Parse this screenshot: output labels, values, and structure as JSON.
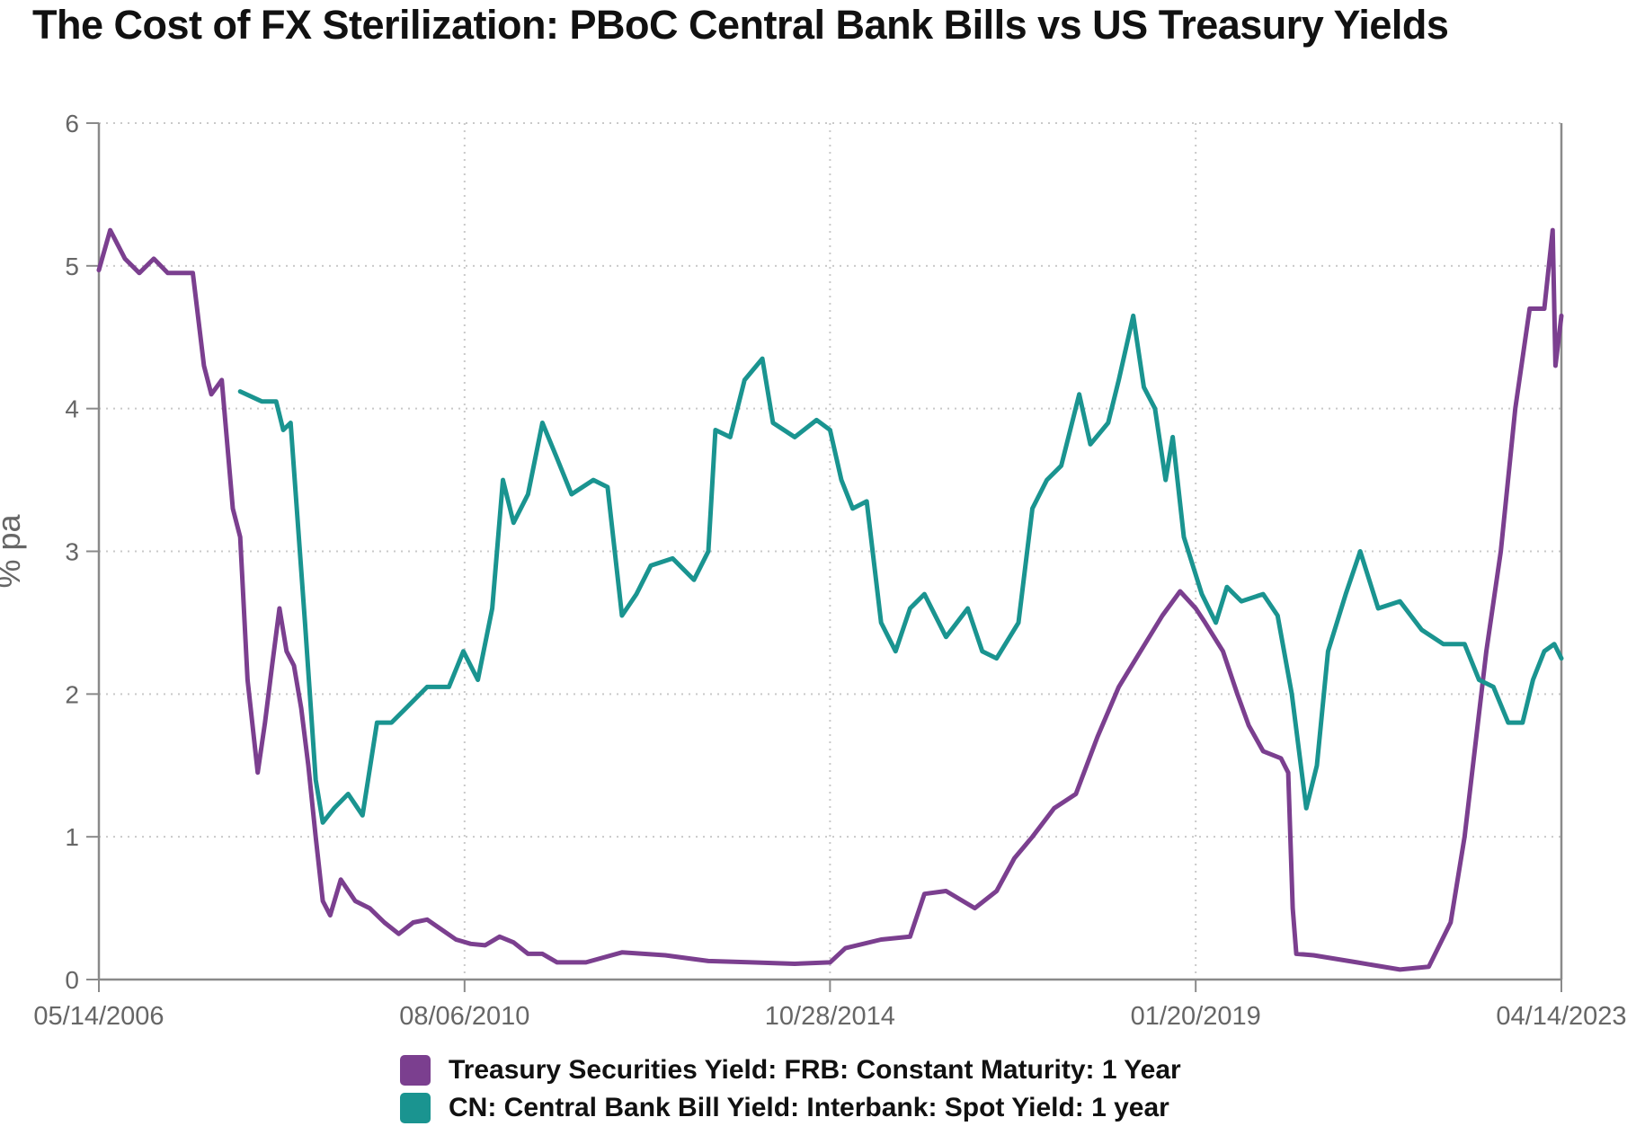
{
  "title": "The Cost of FX Sterilization: PBoC Central Bank Bills vs US Treasury Yields",
  "chart_data": {
    "type": "line",
    "title": "The Cost of FX Sterilization: PBoC Central Bank Bills vs US Treasury Yields",
    "ylabel": "% pa",
    "xlabel": "",
    "ylim": [
      0,
      6
    ],
    "y_ticks": [
      "0",
      "1",
      "2",
      "3",
      "4",
      "5",
      "6"
    ],
    "x_range": [
      "05/14/2006",
      "04/14/2023"
    ],
    "x_ticks": [
      "05/14/2006",
      "08/06/2010",
      "10/28/2014",
      "01/20/2019",
      "04/14/2023"
    ],
    "grid": "dotted",
    "legend_position": "bottom",
    "series": [
      {
        "name": "Treasury Securities Yield: FRB: Constant Maturity: 1 Year",
        "color": "#7b3f8f",
        "points": [
          [
            "2006-05-14",
            4.97
          ],
          [
            "2006-07-01",
            5.25
          ],
          [
            "2006-09-01",
            5.05
          ],
          [
            "2006-11-01",
            4.95
          ],
          [
            "2007-01-01",
            5.05
          ],
          [
            "2007-03-01",
            4.95
          ],
          [
            "2007-05-01",
            4.95
          ],
          [
            "2007-06-15",
            4.95
          ],
          [
            "2007-08-01",
            4.3
          ],
          [
            "2007-09-01",
            4.1
          ],
          [
            "2007-10-15",
            4.2
          ],
          [
            "2007-12-01",
            3.3
          ],
          [
            "2008-01-01",
            3.1
          ],
          [
            "2008-02-01",
            2.1
          ],
          [
            "2008-03-15",
            1.45
          ],
          [
            "2008-04-15",
            1.8
          ],
          [
            "2008-05-15",
            2.2
          ],
          [
            "2008-06-15",
            2.6
          ],
          [
            "2008-07-15",
            2.3
          ],
          [
            "2008-08-15",
            2.2
          ],
          [
            "2008-09-15",
            1.9
          ],
          [
            "2008-10-15",
            1.5
          ],
          [
            "2008-11-15",
            1.0
          ],
          [
            "2008-12-15",
            0.55
          ],
          [
            "2009-01-15",
            0.45
          ],
          [
            "2009-03-01",
            0.7
          ],
          [
            "2009-05-01",
            0.55
          ],
          [
            "2009-07-01",
            0.5
          ],
          [
            "2009-09-01",
            0.4
          ],
          [
            "2009-11-01",
            0.32
          ],
          [
            "2010-01-01",
            0.4
          ],
          [
            "2010-03-01",
            0.42
          ],
          [
            "2010-05-01",
            0.35
          ],
          [
            "2010-07-01",
            0.28
          ],
          [
            "2010-09-01",
            0.25
          ],
          [
            "2010-11-01",
            0.24
          ],
          [
            "2011-01-01",
            0.3
          ],
          [
            "2011-03-01",
            0.26
          ],
          [
            "2011-05-01",
            0.18
          ],
          [
            "2011-07-01",
            0.18
          ],
          [
            "2011-09-01",
            0.12
          ],
          [
            "2012-01-01",
            0.12
          ],
          [
            "2012-06-01",
            0.19
          ],
          [
            "2012-12-01",
            0.17
          ],
          [
            "2013-06-01",
            0.13
          ],
          [
            "2013-12-01",
            0.12
          ],
          [
            "2014-06-01",
            0.11
          ],
          [
            "2014-10-28",
            0.12
          ],
          [
            "2015-01-01",
            0.22
          ],
          [
            "2015-06-01",
            0.28
          ],
          [
            "2015-10-01",
            0.3
          ],
          [
            "2015-12-01",
            0.6
          ],
          [
            "2016-03-01",
            0.62
          ],
          [
            "2016-07-01",
            0.5
          ],
          [
            "2016-10-01",
            0.62
          ],
          [
            "2016-12-15",
            0.85
          ],
          [
            "2017-03-01",
            1.0
          ],
          [
            "2017-06-01",
            1.2
          ],
          [
            "2017-09-01",
            1.3
          ],
          [
            "2017-12-01",
            1.7
          ],
          [
            "2018-03-01",
            2.05
          ],
          [
            "2018-06-01",
            2.3
          ],
          [
            "2018-09-01",
            2.55
          ],
          [
            "2018-11-15",
            2.72
          ],
          [
            "2019-01-20",
            2.6
          ],
          [
            "2019-03-01",
            2.5
          ],
          [
            "2019-05-15",
            2.3
          ],
          [
            "2019-07-15",
            2.0
          ],
          [
            "2019-09-01",
            1.78
          ],
          [
            "2019-11-01",
            1.6
          ],
          [
            "2020-01-15",
            1.55
          ],
          [
            "2020-02-15",
            1.45
          ],
          [
            "2020-03-05",
            0.5
          ],
          [
            "2020-03-20",
            0.18
          ],
          [
            "2020-06-01",
            0.17
          ],
          [
            "2020-12-01",
            0.12
          ],
          [
            "2021-06-01",
            0.07
          ],
          [
            "2021-10-01",
            0.09
          ],
          [
            "2022-01-01",
            0.4
          ],
          [
            "2022-03-01",
            1.0
          ],
          [
            "2022-06-01",
            2.3
          ],
          [
            "2022-08-01",
            3.0
          ],
          [
            "2022-10-01",
            4.0
          ],
          [
            "2022-12-01",
            4.7
          ],
          [
            "2023-02-01",
            4.7
          ],
          [
            "2023-03-08",
            5.25
          ],
          [
            "2023-03-20",
            4.3
          ],
          [
            "2023-04-14",
            4.65
          ]
        ]
      },
      {
        "name": "CN: Central Bank Bill Yield: Interbank: Spot Yield: 1 year",
        "color": "#1a9490",
        "points": [
          [
            "2008-01-01",
            4.12
          ],
          [
            "2008-04-01",
            4.05
          ],
          [
            "2008-06-01",
            4.05
          ],
          [
            "2008-07-01",
            3.85
          ],
          [
            "2008-08-01",
            3.9
          ],
          [
            "2008-10-01",
            2.5
          ],
          [
            "2008-11-15",
            1.4
          ],
          [
            "2008-12-15",
            1.1
          ],
          [
            "2009-02-01",
            1.2
          ],
          [
            "2009-04-01",
            1.3
          ],
          [
            "2009-06-01",
            1.15
          ],
          [
            "2009-08-01",
            1.8
          ],
          [
            "2009-10-01",
            1.8
          ],
          [
            "2009-12-01",
            1.9
          ],
          [
            "2010-03-01",
            2.05
          ],
          [
            "2010-06-01",
            2.05
          ],
          [
            "2010-08-01",
            2.3
          ],
          [
            "2010-10-01",
            2.1
          ],
          [
            "2010-12-01",
            2.6
          ],
          [
            "2011-01-15",
            3.5
          ],
          [
            "2011-03-01",
            3.2
          ],
          [
            "2011-05-01",
            3.4
          ],
          [
            "2011-07-01",
            3.9
          ],
          [
            "2011-09-01",
            3.65
          ],
          [
            "2011-11-01",
            3.4
          ],
          [
            "2012-02-01",
            3.5
          ],
          [
            "2012-04-01",
            3.45
          ],
          [
            "2012-06-01",
            2.55
          ],
          [
            "2012-08-01",
            2.7
          ],
          [
            "2012-10-01",
            2.9
          ],
          [
            "2013-01-01",
            2.95
          ],
          [
            "2013-04-01",
            2.8
          ],
          [
            "2013-06-01",
            3.0
          ],
          [
            "2013-07-01",
            3.85
          ],
          [
            "2013-09-01",
            3.8
          ],
          [
            "2013-11-01",
            4.2
          ],
          [
            "2014-01-15",
            4.35
          ],
          [
            "2014-03-01",
            3.9
          ],
          [
            "2014-06-01",
            3.8
          ],
          [
            "2014-09-01",
            3.92
          ],
          [
            "2014-10-28",
            3.85
          ],
          [
            "2014-12-15",
            3.5
          ],
          [
            "2015-02-01",
            3.3
          ],
          [
            "2015-04-01",
            3.35
          ],
          [
            "2015-06-01",
            2.5
          ],
          [
            "2015-08-01",
            2.3
          ],
          [
            "2015-10-01",
            2.6
          ],
          [
            "2015-12-01",
            2.7
          ],
          [
            "2016-03-01",
            2.4
          ],
          [
            "2016-06-01",
            2.6
          ],
          [
            "2016-08-01",
            2.3
          ],
          [
            "2016-10-01",
            2.25
          ],
          [
            "2017-01-01",
            2.5
          ],
          [
            "2017-03-01",
            3.3
          ],
          [
            "2017-05-01",
            3.5
          ],
          [
            "2017-07-01",
            3.6
          ],
          [
            "2017-09-15",
            4.1
          ],
          [
            "2017-11-01",
            3.75
          ],
          [
            "2018-01-15",
            3.9
          ],
          [
            "2018-03-01",
            4.2
          ],
          [
            "2018-05-01",
            4.65
          ],
          [
            "2018-06-15",
            4.15
          ],
          [
            "2018-08-01",
            4.0
          ],
          [
            "2018-09-15",
            3.5
          ],
          [
            "2018-10-15",
            3.8
          ],
          [
            "2018-12-01",
            3.1
          ],
          [
            "2019-02-15",
            2.7
          ],
          [
            "2019-04-15",
            2.5
          ],
          [
            "2019-06-01",
            2.75
          ],
          [
            "2019-08-01",
            2.65
          ],
          [
            "2019-11-01",
            2.7
          ],
          [
            "2020-01-01",
            2.55
          ],
          [
            "2020-03-01",
            2.0
          ],
          [
            "2020-05-01",
            1.2
          ],
          [
            "2020-06-15",
            1.5
          ],
          [
            "2020-08-01",
            2.3
          ],
          [
            "2020-10-15",
            2.7
          ],
          [
            "2020-12-15",
            3.0
          ],
          [
            "2021-03-01",
            2.6
          ],
          [
            "2021-06-01",
            2.65
          ],
          [
            "2021-09-01",
            2.45
          ],
          [
            "2021-12-01",
            2.35
          ],
          [
            "2022-03-01",
            2.35
          ],
          [
            "2022-05-01",
            2.1
          ],
          [
            "2022-07-01",
            2.05
          ],
          [
            "2022-09-01",
            1.8
          ],
          [
            "2022-11-01",
            1.8
          ],
          [
            "2022-12-15",
            2.1
          ],
          [
            "2023-02-01",
            2.3
          ],
          [
            "2023-03-15",
            2.35
          ],
          [
            "2023-04-14",
            2.25
          ]
        ]
      }
    ]
  }
}
